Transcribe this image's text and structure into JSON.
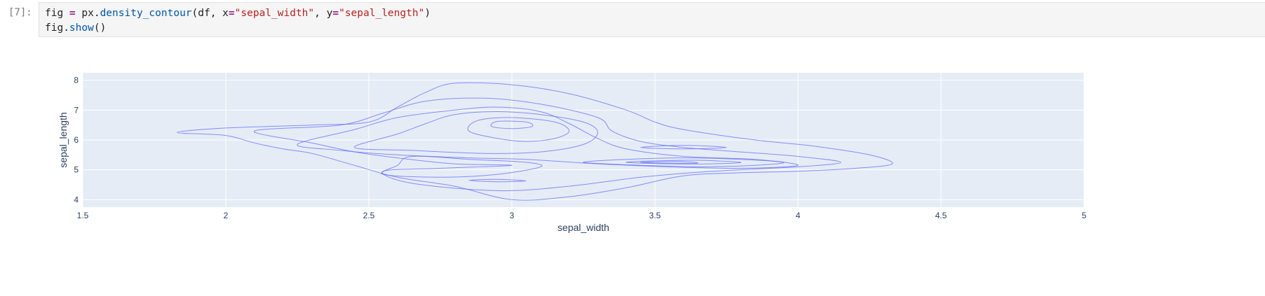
{
  "cell": {
    "prompt": "[7]:",
    "code": [
      [
        {
          "t": "fig ",
          "c": "plain"
        },
        {
          "t": "=",
          "c": "op"
        },
        {
          "t": " px.",
          "c": "plain"
        },
        {
          "t": "density_contour",
          "c": "fn"
        },
        {
          "t": "(df, x",
          "c": "plain"
        },
        {
          "t": "=",
          "c": "op"
        },
        {
          "t": "\"sepal_width\"",
          "c": "str"
        },
        {
          "t": ", y",
          "c": "plain"
        },
        {
          "t": "=",
          "c": "op"
        },
        {
          "t": "\"sepal_length\"",
          "c": "str"
        },
        {
          "t": ")",
          "c": "plain"
        }
      ],
      [
        {
          "t": "fig.",
          "c": "plain"
        },
        {
          "t": "show",
          "c": "fn"
        },
        {
          "t": "()",
          "c": "plain"
        }
      ]
    ]
  },
  "colors": {
    "plot_bg": "#e5ecf6",
    "grid": "#ffffff",
    "contour": "#636efa",
    "text": "#2a3f5f"
  },
  "chart_data": {
    "type": "contour",
    "xlabel": "sepal_width",
    "ylabel": "sepal_length",
    "xlim": [
      1.5,
      5
    ],
    "ylim": [
      3.75,
      8.25
    ],
    "xticks": [
      1.5,
      2,
      2.5,
      3,
      3.5,
      4,
      4.5,
      5
    ],
    "xtick_labels": [
      "1.5",
      "2",
      "2.5",
      "3",
      "3.5",
      "4",
      "4.5",
      "5"
    ],
    "yticks": [
      4,
      5,
      6,
      7,
      8
    ],
    "ytick_labels": [
      "4",
      "5",
      "6",
      "7",
      "8"
    ],
    "grid": true,
    "contour_levels": [
      {
        "level": 1,
        "points": [
          [
            1.83,
            6.25
          ],
          [
            2.0,
            6.15
          ],
          [
            2.1,
            5.9
          ],
          [
            2.2,
            5.7
          ],
          [
            2.3,
            5.55
          ],
          [
            2.45,
            5.15
          ],
          [
            2.6,
            4.75
          ],
          [
            2.8,
            4.45
          ],
          [
            3.0,
            4.0
          ],
          [
            3.2,
            4.1
          ],
          [
            3.4,
            4.4
          ],
          [
            3.6,
            4.8
          ],
          [
            3.8,
            4.9
          ],
          [
            4.0,
            4.95
          ],
          [
            4.2,
            5.05
          ],
          [
            4.33,
            5.2
          ],
          [
            4.25,
            5.5
          ],
          [
            4.05,
            5.8
          ],
          [
            3.85,
            6.0
          ],
          [
            3.6,
            6.35
          ],
          [
            3.5,
            6.6
          ],
          [
            3.4,
            7.0
          ],
          [
            3.2,
            7.55
          ],
          [
            3.0,
            7.85
          ],
          [
            2.8,
            7.9
          ],
          [
            2.7,
            7.6
          ],
          [
            2.6,
            7.1
          ],
          [
            2.5,
            6.6
          ],
          [
            2.3,
            6.5
          ],
          [
            2.0,
            6.4
          ],
          [
            1.83,
            6.25
          ]
        ]
      },
      {
        "level": 2,
        "points": [
          [
            2.1,
            6.3
          ],
          [
            2.3,
            5.9
          ],
          [
            2.45,
            5.6
          ],
          [
            2.6,
            5.4
          ],
          [
            2.8,
            5.2
          ],
          [
            3.0,
            5.15
          ],
          [
            2.75,
            5.05
          ],
          [
            2.55,
            4.95
          ],
          [
            2.65,
            4.55
          ],
          [
            2.95,
            4.3
          ],
          [
            3.2,
            4.45
          ],
          [
            3.45,
            4.75
          ],
          [
            3.7,
            4.95
          ],
          [
            4.0,
            5.1
          ],
          [
            4.15,
            5.25
          ],
          [
            4.0,
            5.45
          ],
          [
            3.8,
            5.6
          ],
          [
            3.6,
            5.75
          ],
          [
            3.45,
            5.95
          ],
          [
            3.35,
            6.3
          ],
          [
            3.3,
            6.75
          ],
          [
            3.1,
            7.2
          ],
          [
            2.9,
            7.4
          ],
          [
            2.7,
            7.3
          ],
          [
            2.55,
            6.9
          ],
          [
            2.4,
            6.5
          ],
          [
            2.1,
            6.3
          ]
        ]
      },
      {
        "level": 3,
        "points": [
          [
            2.25,
            5.85
          ],
          [
            2.4,
            5.65
          ],
          [
            2.6,
            5.5
          ],
          [
            2.85,
            5.4
          ],
          [
            3.05,
            5.35
          ],
          [
            3.3,
            5.2
          ],
          [
            3.55,
            5.1
          ],
          [
            3.8,
            5.05
          ],
          [
            4.0,
            5.15
          ],
          [
            3.85,
            5.35
          ],
          [
            3.6,
            5.45
          ],
          [
            3.4,
            5.7
          ],
          [
            3.3,
            6.05
          ],
          [
            3.2,
            6.55
          ],
          [
            3.1,
            6.95
          ],
          [
            2.95,
            7.1
          ],
          [
            2.8,
            7.0
          ],
          [
            2.6,
            6.75
          ],
          [
            2.45,
            6.35
          ],
          [
            2.25,
            5.85
          ]
        ]
      },
      {
        "level": 4,
        "points": [
          [
            2.45,
            5.75
          ],
          [
            2.65,
            5.65
          ],
          [
            2.9,
            5.55
          ],
          [
            3.1,
            5.6
          ],
          [
            3.25,
            5.85
          ],
          [
            3.3,
            6.25
          ],
          [
            3.25,
            6.6
          ],
          [
            3.1,
            6.85
          ],
          [
            2.95,
            6.95
          ],
          [
            2.8,
            6.85
          ],
          [
            2.7,
            6.55
          ],
          [
            2.6,
            6.2
          ],
          [
            2.45,
            5.75
          ]
        ]
      },
      {
        "level": 5,
        "points": [
          [
            2.65,
            5.45
          ],
          [
            2.85,
            5.35
          ],
          [
            3.05,
            5.25
          ],
          [
            3.1,
            5.1
          ],
          [
            2.95,
            4.85
          ],
          [
            2.75,
            4.75
          ],
          [
            2.55,
            4.85
          ],
          [
            2.6,
            5.15
          ],
          [
            2.65,
            5.45
          ]
        ]
      },
      {
        "level": 6,
        "points": [
          [
            3.25,
            5.25
          ],
          [
            3.45,
            5.15
          ],
          [
            3.65,
            5.1
          ],
          [
            3.85,
            5.15
          ],
          [
            3.95,
            5.25
          ],
          [
            3.8,
            5.35
          ],
          [
            3.6,
            5.4
          ],
          [
            3.4,
            5.35
          ],
          [
            3.25,
            5.25
          ]
        ]
      },
      {
        "level": 7,
        "points": [
          [
            3.4,
            5.25
          ],
          [
            3.55,
            5.2
          ],
          [
            3.7,
            5.2
          ],
          [
            3.8,
            5.25
          ],
          [
            3.65,
            5.32
          ],
          [
            3.5,
            5.3
          ],
          [
            3.4,
            5.25
          ]
        ]
      },
      {
        "level": 8,
        "points": [
          [
            3.45,
            5.25
          ],
          [
            3.55,
            5.22
          ],
          [
            3.65,
            5.23
          ],
          [
            3.58,
            5.28
          ],
          [
            3.45,
            5.25
          ]
        ]
      },
      {
        "level": 9,
        "points": [
          [
            2.85,
            6.3
          ],
          [
            2.95,
            6.05
          ],
          [
            3.05,
            5.95
          ],
          [
            3.15,
            6.05
          ],
          [
            3.2,
            6.3
          ],
          [
            3.15,
            6.6
          ],
          [
            3.0,
            6.75
          ],
          [
            2.88,
            6.65
          ],
          [
            2.85,
            6.3
          ]
        ]
      },
      {
        "level": 10,
        "points": [
          [
            2.93,
            6.45
          ],
          [
            3.0,
            6.38
          ],
          [
            3.07,
            6.45
          ],
          [
            3.05,
            6.6
          ],
          [
            2.95,
            6.62
          ],
          [
            2.93,
            6.45
          ]
        ]
      },
      {
        "level": 11,
        "points": [
          [
            3.45,
            5.75
          ],
          [
            3.6,
            5.82
          ],
          [
            3.75,
            5.75
          ],
          [
            3.6,
            5.7
          ],
          [
            3.45,
            5.75
          ]
        ]
      },
      {
        "level": 12,
        "points": [
          [
            2.85,
            4.65
          ],
          [
            2.95,
            4.6
          ],
          [
            3.05,
            4.63
          ],
          [
            2.95,
            4.68
          ],
          [
            2.85,
            4.65
          ]
        ]
      }
    ]
  }
}
